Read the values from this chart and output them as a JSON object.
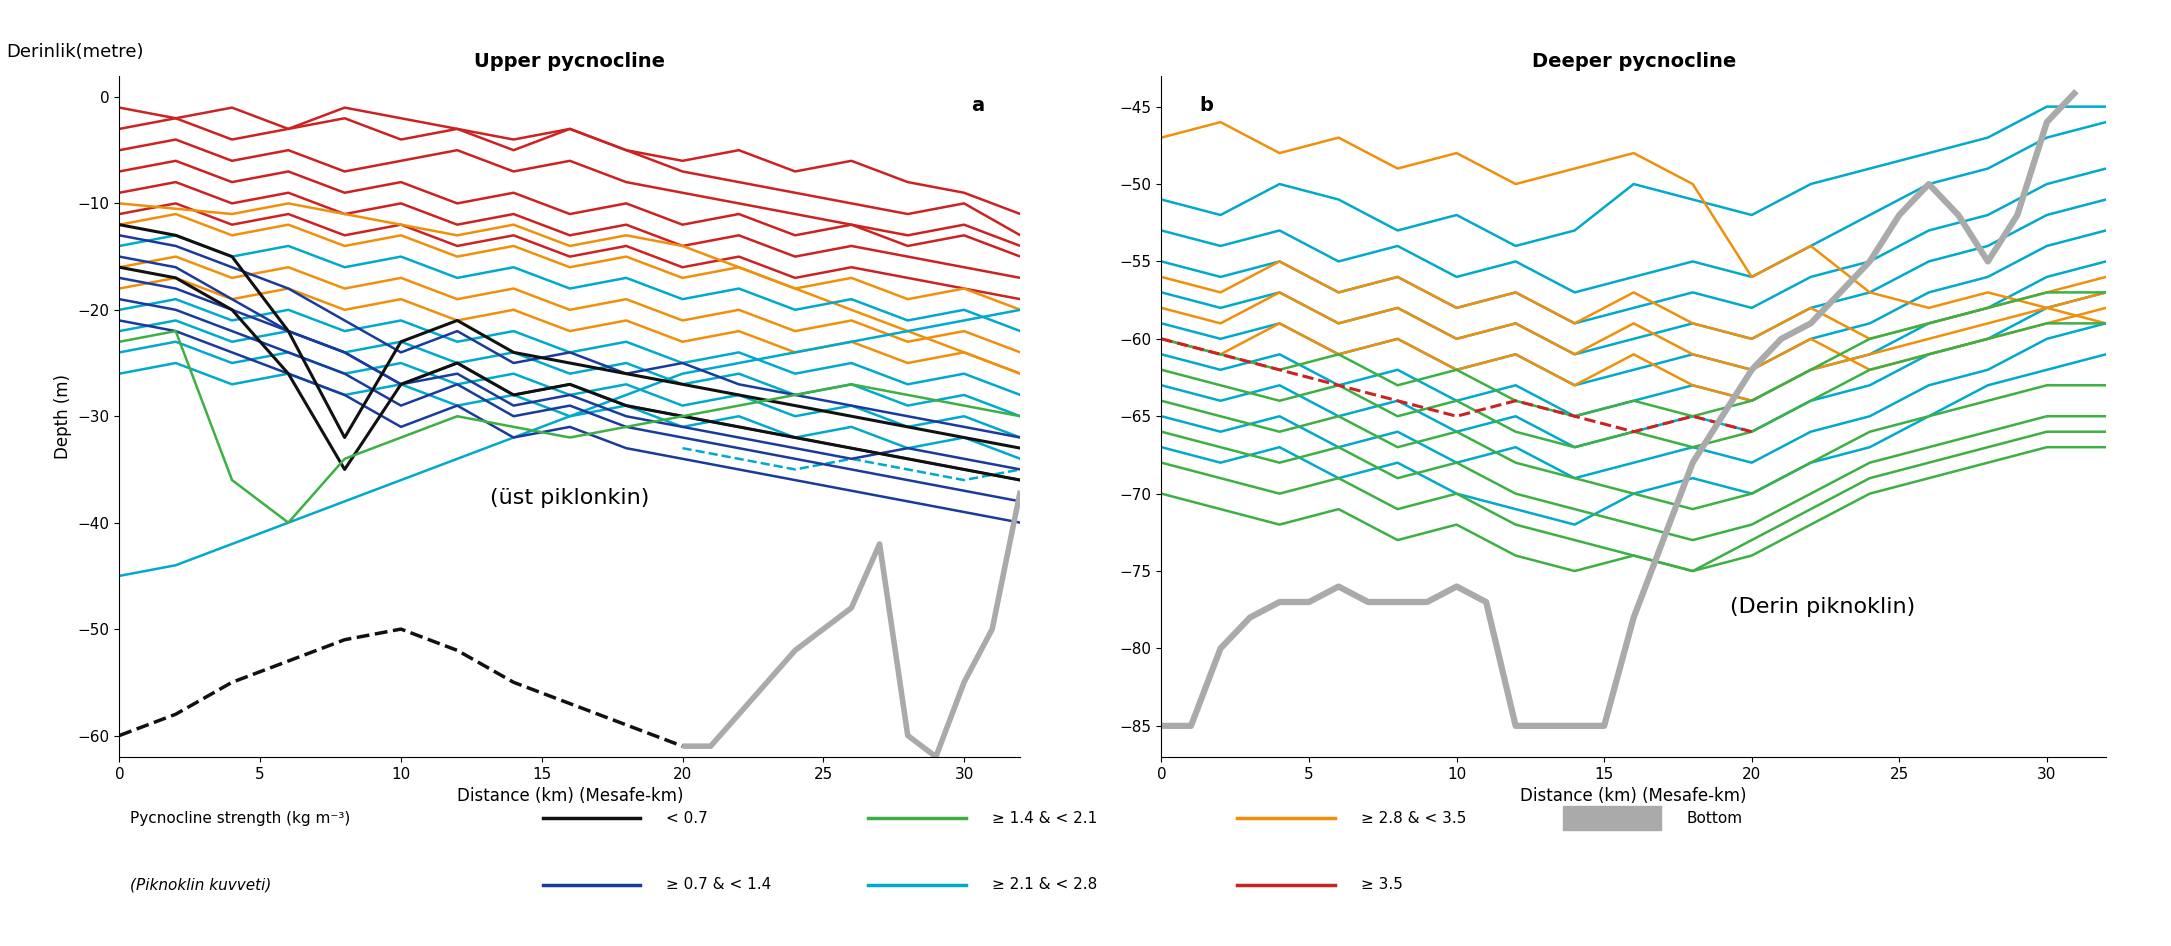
{
  "title_left": "Upper pycnocline",
  "title_right": "Deeper pycnocline",
  "label_a": "a",
  "label_b": "b",
  "annotation_left": "(üst piklonkin)",
  "annotation_right": "(Derin piknoklin)",
  "xlabel": "Distance (km) (Mesafe-km)",
  "ylabel_left": "Depth (m)",
  "ylabel_top": "Derinlik(metre)",
  "xlim": [
    0,
    32
  ],
  "ylim_left": [
    -62,
    2
  ],
  "ylim_right": [
    -87,
    -43
  ],
  "yticks_left": [
    0,
    -10,
    -20,
    -30,
    -40,
    -50,
    -60
  ],
  "yticks_right": [
    -45,
    -50,
    -55,
    -60,
    -65,
    -70,
    -75,
    -80,
    -85
  ],
  "xticks": [
    0,
    5,
    10,
    15,
    20,
    25,
    30
  ],
  "colors": {
    "black": "#111111",
    "dark_blue": "#1a3a9c",
    "green": "#3cb043",
    "cyan": "#00aacc",
    "orange": "#f0900a",
    "red": "#cc2222",
    "gray": "#aaaaaa"
  },
  "left_bottom_x": [
    20,
    21,
    22,
    24,
    26,
    27,
    28,
    29,
    30,
    31,
    32
  ],
  "left_bottom_y": [
    -61,
    -61,
    -58,
    -52,
    -48,
    -42,
    -60,
    -62,
    -55,
    -50,
    -37
  ],
  "right_bottom_x": [
    0,
    1,
    2,
    3,
    4,
    5,
    6,
    7,
    8,
    9,
    10,
    11,
    12,
    13,
    14,
    15,
    16,
    17,
    18,
    19,
    20,
    21,
    22,
    23,
    24,
    25,
    26,
    27,
    28,
    29,
    30,
    31
  ],
  "right_bottom_y": [
    -85,
    -85,
    -80,
    -78,
    -77,
    -77,
    -76,
    -77,
    -77,
    -77,
    -76,
    -77,
    -85,
    -85,
    -85,
    -85,
    -78,
    -73,
    -68,
    -65,
    -62,
    -60,
    -59,
    -57,
    -55,
    -52,
    -50,
    -52,
    -55,
    -52,
    -46,
    -44
  ]
}
